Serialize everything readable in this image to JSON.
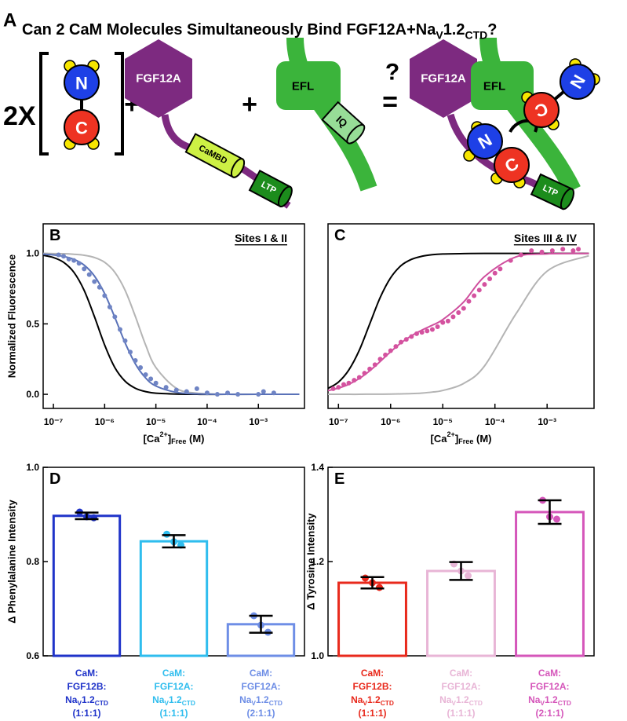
{
  "diagram": {
    "panel": "A",
    "title": [
      "Can 2 CaM Molecules Simultaneously Bind FGF12A+Na",
      "V",
      "1.2",
      "CTD",
      "?"
    ],
    "multiplier": "2X",
    "cam_n": "N",
    "cam_c": "C",
    "plus": "+",
    "fgf": "FGF12A",
    "cambd": "CaMBD",
    "ltp": "LTP",
    "efl": "EFL",
    "iq": "IQ",
    "equals": "=",
    "question": "?"
  },
  "chart_data": [
    {
      "type": "line",
      "panel": "B",
      "annotation": "Sites I & II",
      "ylabel": "Normalized Fluorescence",
      "xlabel": [
        "[Ca",
        "2+",
        "]",
        "Free",
        " (M)"
      ],
      "xscale": "log",
      "xlim": [
        6.31e-08,
        0.00794
      ],
      "ylim": [
        -0.1,
        1.21
      ],
      "xticks": [
        {
          "value": 1e-07,
          "label": "10⁻⁷"
        },
        {
          "value": 1e-06,
          "label": "10⁻⁶"
        },
        {
          "value": 1e-05,
          "label": "10⁻⁵"
        },
        {
          "value": 0.0001,
          "label": "10⁻⁴"
        },
        {
          "value": 0.001,
          "label": "10⁻³"
        }
      ],
      "yticks": [
        {
          "value": 0,
          "label": "0.0"
        },
        0.5,
        {
          "value": 1,
          "label": "1.0"
        }
      ],
      "series": [
        {
          "color": "#000000",
          "mode": "line",
          "x": [
            6.31e-08,
            1e-07,
            1.58e-07,
            2.51e-07,
            3.98e-07,
            6.31e-07,
            1e-06,
            1.58e-06,
            2.51e-06,
            3.98e-06,
            6.31e-06,
            1e-05,
            2.51e-05,
            6.31e-05,
            0.000251,
            0.001,
            0.00631
          ],
          "values": [
            0.987,
            0.971,
            0.937,
            0.866,
            0.738,
            0.552,
            0.35,
            0.19,
            0.093,
            0.043,
            0.019,
            0.008,
            0.002,
            0,
            0,
            0,
            0
          ]
        },
        {
          "color": "#b4b4b4",
          "mode": "line",
          "x": [
            6.31e-08,
            1e-07,
            1.58e-07,
            2.51e-07,
            3.98e-07,
            6.31e-07,
            1e-06,
            1.58e-06,
            2.51e-06,
            3.98e-06,
            6.31e-06,
            1e-05,
            2.51e-05,
            6.31e-05,
            0.000251,
            0.001,
            0.00631
          ],
          "values": [
            1,
            0.999,
            0.998,
            0.994,
            0.987,
            0.971,
            0.937,
            0.866,
            0.738,
            0.552,
            0.35,
            0.19,
            0.043,
            0.008,
            0,
            0,
            0
          ]
        },
        {
          "color": "#5a72b8",
          "mode": "line",
          "x": [
            6.31e-08,
            1e-07,
            1.58e-07,
            2.51e-07,
            3.98e-07,
            6.31e-07,
            1e-06,
            1.58e-06,
            2.51e-06,
            3.98e-06,
            6.31e-06,
            1e-05,
            2.51e-05,
            6.31e-05,
            0.000251,
            0.001,
            0.00631
          ],
          "values": [
            0.995,
            0.99,
            0.979,
            0.958,
            0.917,
            0.84,
            0.715,
            0.546,
            0.365,
            0.216,
            0.116,
            0.059,
            0.014,
            0.003,
            0,
            0,
            0
          ]
        },
        {
          "color": "#6f84c4",
          "mode": "markers",
          "x": [
            1.26e-07,
            1.58e-07,
            2e-07,
            2.51e-07,
            3.16e-07,
            3.98e-07,
            5.01e-07,
            6.31e-07,
            7.94e-07,
            1e-06,
            1.26e-06,
            1.58e-06,
            2e-06,
            2.51e-06,
            3.16e-06,
            3.98e-06,
            5.01e-06,
            6.31e-06,
            7.94e-06,
            1e-05,
            1.58e-05,
            2.51e-05,
            3.98e-05,
            6.31e-05,
            0.0001,
            0.000158,
            0.000251,
            0.000398,
            0.001,
            0.00126,
            0.002
          ],
          "values": [
            0.99,
            0.98,
            0.96,
            0.95,
            0.93,
            0.89,
            0.85,
            0.8,
            0.76,
            0.7,
            0.62,
            0.55,
            0.46,
            0.38,
            0.3,
            0.24,
            0.19,
            0.14,
            0.11,
            0.08,
            0.05,
            0.03,
            0.02,
            0.04,
            0.01,
            0,
            0.01,
            0,
            0,
            0.02,
            0.01
          ]
        }
      ]
    },
    {
      "type": "line",
      "panel": "C",
      "annotation": "Sites III & IV",
      "xlabel": [
        "[Ca",
        "2+",
        "]",
        "Free",
        " (M)"
      ],
      "xscale": "log",
      "xlim": [
        6.31e-08,
        0.00794
      ],
      "ylim": [
        -0.1,
        1.21
      ],
      "xticks": [
        {
          "value": 1e-07,
          "label": "10⁻⁷"
        },
        {
          "value": 1e-06,
          "label": "10⁻⁶"
        },
        {
          "value": 1e-05,
          "label": "10⁻⁵"
        },
        {
          "value": 0.0001,
          "label": "10⁻⁴"
        },
        {
          "value": 0.001,
          "label": "10⁻³"
        }
      ],
      "series": [
        {
          "color": "#000000",
          "mode": "line",
          "x": [
            6.31e-08,
            1e-07,
            1.58e-07,
            2.51e-07,
            3.98e-07,
            6.31e-07,
            1e-06,
            1.58e-06,
            2.51e-06,
            3.98e-06,
            6.31e-06,
            1e-05,
            2.51e-05,
            6.31e-05,
            0.000251,
            0.001,
            0.00631
          ],
          "values": [
            0.042,
            0.087,
            0.173,
            0.313,
            0.5,
            0.687,
            0.827,
            0.913,
            0.958,
            0.98,
            0.991,
            0.996,
            0.999,
            1,
            1,
            1,
            1
          ]
        },
        {
          "color": "#b4b4b4",
          "mode": "line",
          "x": [
            6.31e-08,
            1e-07,
            1.58e-07,
            2.51e-07,
            3.98e-07,
            6.31e-07,
            1e-06,
            1.58e-06,
            2.51e-06,
            3.98e-06,
            6.31e-06,
            1e-05,
            2.51e-05,
            6.31e-05,
            0.000251,
            0.001,
            0.00631
          ],
          "values": [
            0,
            0,
            0,
            0,
            0.001,
            0.001,
            0.002,
            0.003,
            0.005,
            0.009,
            0.016,
            0.027,
            0.077,
            0.201,
            0.569,
            0.874,
            0.984
          ]
        },
        {
          "color": "#cf4f9e",
          "mode": "line",
          "x": [
            6.31e-08,
            1e-07,
            1.58e-07,
            2.51e-07,
            3.98e-07,
            6.31e-07,
            1e-06,
            1.58e-06,
            2.51e-06,
            3.98e-06,
            6.31e-06,
            1e-05,
            2.51e-05,
            6.31e-05,
            0.000251,
            0.001,
            0.00631
          ],
          "values": [
            0.026,
            0.044,
            0.071,
            0.112,
            0.167,
            0.233,
            0.302,
            0.365,
            0.416,
            0.456,
            0.491,
            0.53,
            0.655,
            0.836,
            0.975,
            0.997,
            1
          ]
        },
        {
          "color": "#d4529f",
          "mode": "markers",
          "x": [
            7.94e-08,
            1e-07,
            1.26e-07,
            1.58e-07,
            2e-07,
            2.51e-07,
            3.16e-07,
            3.98e-07,
            5.01e-07,
            6.31e-07,
            7.94e-07,
            1e-06,
            1.26e-06,
            1.58e-06,
            2e-06,
            2.51e-06,
            3.16e-06,
            3.98e-06,
            5.01e-06,
            6.31e-06,
            7.94e-06,
            1e-05,
            1.26e-05,
            1.58e-05,
            2e-05,
            2.51e-05,
            3.16e-05,
            3.98e-05,
            5.01e-05,
            6.31e-05,
            7.94e-05,
            0.0001,
            0.000126,
            0.0002,
            0.000316,
            0.000501,
            0.000794,
            0.00126,
            0.002,
            0.00316,
            0.00398
          ],
          "values": [
            0.04,
            0.05,
            0.07,
            0.08,
            0.1,
            0.12,
            0.15,
            0.18,
            0.21,
            0.25,
            0.28,
            0.31,
            0.34,
            0.37,
            0.39,
            0.41,
            0.43,
            0.44,
            0.45,
            0.46,
            0.48,
            0.51,
            0.52,
            0.55,
            0.58,
            0.61,
            0.66,
            0.7,
            0.74,
            0.78,
            0.82,
            0.86,
            0.89,
            0.95,
            0.99,
            1.02,
            1.01,
            1.02,
            1.03,
            1.02,
            1.03
          ]
        }
      ]
    },
    {
      "type": "bar",
      "panel": "D",
      "ylabel": "Δ Phenylalanine Intensity",
      "ylim": [
        0.6,
        1.0
      ],
      "yticks": [
        0.6,
        0.8,
        {
          "value": 1,
          "label": "1.0"
        }
      ],
      "categories": [
        [
          "CaM:",
          "FGF12B:",
          [
            "Na",
            "V",
            "1.2",
            "CTD"
          ],
          "(1:1:1)"
        ],
        [
          "CaM:",
          "FGF12A:",
          [
            "Na",
            "V",
            "1.2",
            "CTD"
          ],
          "(1:1:1)"
        ],
        [
          "CaM:",
          "FGF12A:",
          [
            "Na",
            "V",
            "1.2",
            "CTD"
          ],
          "(2:1:1)"
        ]
      ],
      "colors": [
        "#1f33c9",
        "#2fbdee",
        "#6e8ee6"
      ],
      "values": [
        0.897,
        0.843,
        0.667
      ],
      "errors": [
        0.007,
        0.013,
        0.018
      ],
      "points": [
        [
          0.905,
          0.895,
          0.893
        ],
        [
          0.858,
          0.842,
          0.835
        ],
        [
          0.685,
          0.665,
          0.65
        ]
      ]
    },
    {
      "type": "bar",
      "panel": "E",
      "ylabel": "Δ Tyrosine Intensity",
      "ylim": [
        1.0,
        1.4
      ],
      "yticks": [
        {
          "value": 1,
          "label": "1.0"
        },
        1.2,
        1.4
      ],
      "categories": [
        [
          "CaM:",
          "FGF12B:",
          [
            "Na",
            "V",
            "1.2",
            "CTD"
          ],
          "(1:1:1)"
        ],
        [
          "CaM:",
          "FGF12A:",
          [
            "Na",
            "V",
            "1.2",
            "CTD"
          ],
          "(1:1:1)"
        ],
        [
          "CaM:",
          "FGF12A:",
          [
            "Na",
            "V",
            "1.2",
            "CTD"
          ],
          "(2:1:1)"
        ]
      ],
      "colors": [
        "#e8291c",
        "#e8b5d6",
        "#d556ba"
      ],
      "values": [
        1.155,
        1.18,
        1.305
      ],
      "errors": [
        0.012,
        0.019,
        0.025
      ],
      "points": [
        [
          1.165,
          1.155,
          1.145
        ],
        [
          1.195,
          1.18,
          1.17
        ],
        [
          1.33,
          1.295,
          1.29
        ]
      ]
    }
  ]
}
